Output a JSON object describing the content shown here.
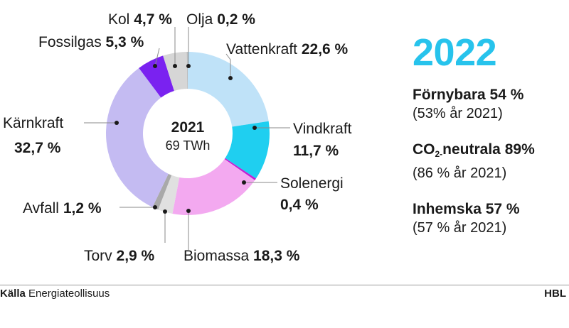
{
  "chart_data": {
    "type": "pie",
    "style": "donut",
    "center": {
      "year": "2021",
      "total": "69 TWh"
    },
    "slices": [
      {
        "name": "Vattenkraft",
        "value_label": "22,6 %",
        "value": 22.6,
        "color": "#bfe2f8"
      },
      {
        "name": "Vindkraft",
        "value_label": "11,7 %",
        "value": 11.7,
        "color": "#1fcff0"
      },
      {
        "name": "Solenergi",
        "value_label": "0,4 %",
        "value": 0.4,
        "color": "#c21fd4"
      },
      {
        "name": "Biomassa",
        "value_label": "18,3 %",
        "value": 18.3,
        "color": "#f3a9f0"
      },
      {
        "name": "Torv",
        "value_label": "2,9 %",
        "value": 2.9,
        "color": "#e0e0e0"
      },
      {
        "name": "Avfall",
        "value_label": "1,2 %",
        "value": 1.2,
        "color": "#a9a9a9"
      },
      {
        "name": "Kärnkraft",
        "value_label": "32,7 %",
        "value": 32.7,
        "color": "#c4bbf2"
      },
      {
        "name": "Fossilgas",
        "value_label": "5,3 %",
        "value": 5.3,
        "color": "#7a22f0"
      },
      {
        "name": "Kol",
        "value_label": "4,7 %",
        "value": 4.7,
        "color": "#d6d6d6"
      },
      {
        "name": "Olja",
        "value_label": "0,2 %",
        "value": 0.2,
        "color": "#bdbdbd"
      }
    ]
  },
  "summary": {
    "year": "2022",
    "stats": [
      {
        "title": "Förnybara",
        "value": "54 %",
        "sub": "(53% år 2021)"
      },
      {
        "title_main": "CO",
        "title_sub": "2-",
        "title_rest": "neutrala",
        "value": "89%",
        "sub": "(86 % år 2021)"
      },
      {
        "title": "Inhemska",
        "value": "57 %",
        "sub": "(57 % år 2021)"
      }
    ]
  },
  "footer": {
    "source_label": "Källa",
    "source_name": "Energiateollisuus",
    "publisher": "HBL"
  }
}
